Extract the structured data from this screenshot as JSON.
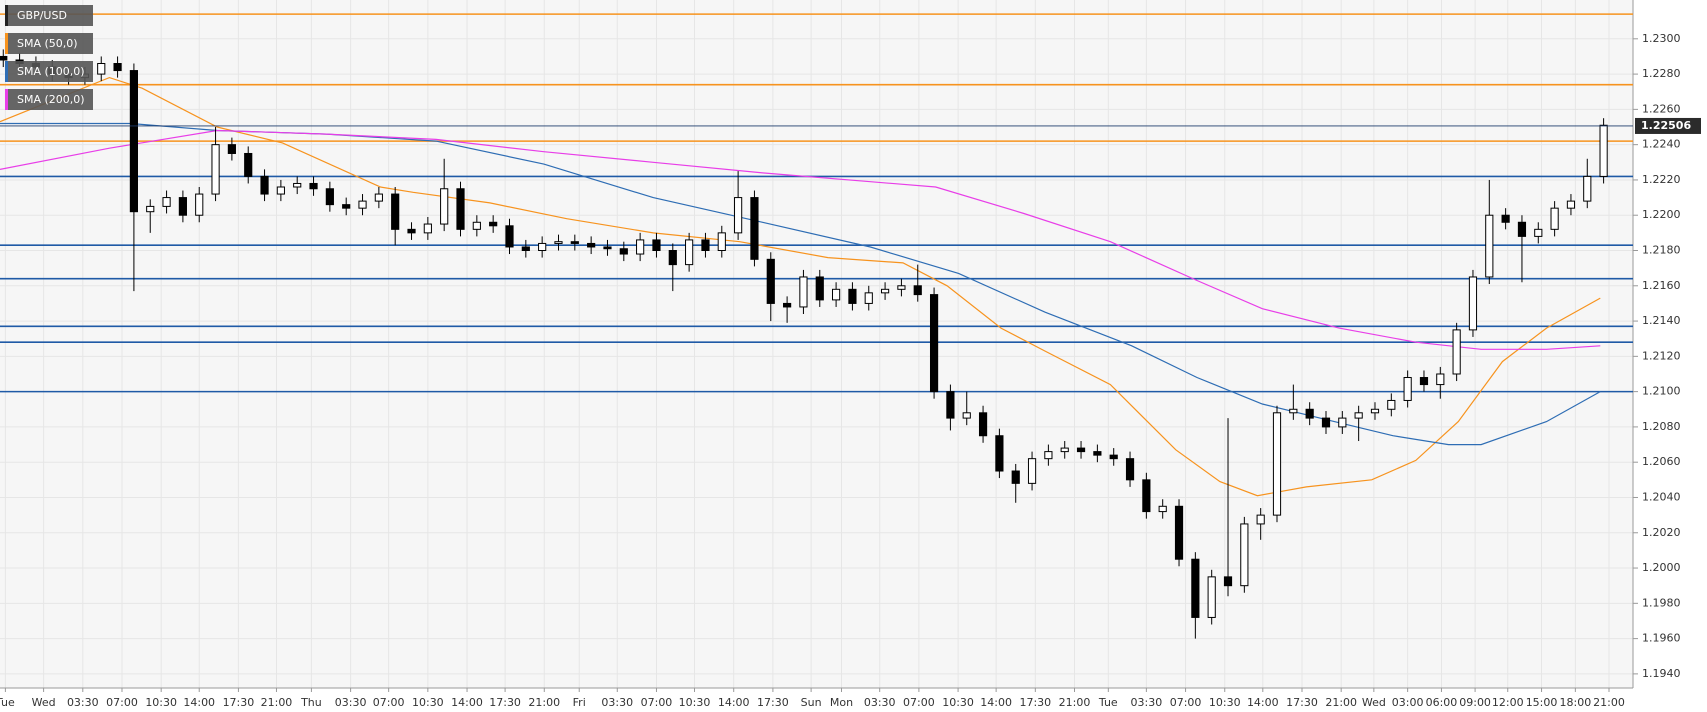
{
  "chart_data": {
    "type": "candlestick",
    "series": [
      {
        "name": "GBP/USD",
        "type": "candlestick",
        "color": "#000000",
        "x": [
          0,
          1,
          2,
          3,
          4,
          5,
          6,
          7,
          8,
          9,
          10,
          11,
          12,
          13,
          14,
          15,
          16,
          17,
          18,
          19,
          20,
          21,
          22,
          23,
          24,
          25,
          26,
          27,
          28,
          29,
          30,
          31,
          32,
          33,
          34,
          35,
          36,
          37,
          38,
          39,
          40,
          41,
          42,
          43,
          44,
          45,
          46,
          47,
          48,
          49,
          50,
          51,
          52,
          53,
          54,
          55,
          56,
          57,
          58,
          59,
          60,
          61,
          62,
          63,
          64,
          65,
          66,
          67,
          68,
          69,
          70,
          71,
          72,
          73,
          74,
          75,
          76,
          77,
          78,
          79,
          80,
          81,
          82,
          83,
          84,
          85,
          86,
          87,
          88,
          89,
          90,
          91,
          92,
          93,
          94,
          95,
          96,
          97,
          98
        ],
        "open": [
          1.229,
          1.2288,
          1.2286,
          1.2284,
          1.228,
          1.2278,
          1.228,
          1.2286,
          1.2282,
          1.2202,
          1.2205,
          1.221,
          1.22,
          1.2212,
          1.224,
          1.2235,
          1.2222,
          1.2212,
          1.2216,
          1.2218,
          1.2215,
          1.2206,
          1.2204,
          1.2208,
          1.2212,
          1.2192,
          1.219,
          1.2195,
          1.2215,
          1.2192,
          1.2196,
          1.2194,
          1.2182,
          1.218,
          1.2184,
          1.2185,
          1.2184,
          1.2182,
          1.2181,
          1.2178,
          1.2186,
          1.218,
          1.2172,
          1.2186,
          1.218,
          1.219,
          1.221,
          1.2175,
          1.215,
          1.2148,
          1.2165,
          1.2152,
          1.2158,
          1.215,
          1.2156,
          1.2158,
          1.216,
          1.2155,
          1.21,
          1.2085,
          1.2088,
          1.2075,
          1.2055,
          1.2048,
          1.2062,
          1.2066,
          1.2068,
          1.2066,
          1.2064,
          1.2062,
          1.205,
          1.2032,
          1.2035,
          1.2005,
          1.1972,
          1.1995,
          1.199,
          1.2025,
          1.203,
          1.2088,
          1.209,
          1.2085,
          1.208,
          1.2085,
          1.2088,
          1.209,
          1.2095,
          1.2108,
          1.2104,
          1.211,
          1.2135,
          1.2165,
          1.22,
          1.2196,
          1.2188,
          1.2192,
          1.2204,
          1.2208,
          1.2222
        ],
        "high": [
          1.2294,
          1.2292,
          1.229,
          1.2288,
          1.2284,
          1.2284,
          1.229,
          1.229,
          1.2286,
          1.2209,
          1.2214,
          1.2214,
          1.2216,
          1.225,
          1.2244,
          1.2239,
          1.2226,
          1.222,
          1.2222,
          1.2222,
          1.2219,
          1.221,
          1.2212,
          1.2216,
          1.2216,
          1.2196,
          1.2199,
          1.2232,
          1.2219,
          1.22,
          1.22,
          1.2198,
          1.2186,
          1.2188,
          1.2189,
          1.2189,
          1.2188,
          1.2186,
          1.2185,
          1.219,
          1.219,
          1.2184,
          1.219,
          1.219,
          1.2194,
          1.2225,
          1.2214,
          1.2179,
          1.2154,
          1.2169,
          1.2169,
          1.2162,
          1.2162,
          1.216,
          1.2162,
          1.2164,
          1.2172,
          1.2159,
          1.2104,
          1.21,
          1.2092,
          1.2079,
          1.2059,
          1.2066,
          1.207,
          1.2072,
          1.2072,
          1.207,
          1.2068,
          1.2066,
          1.2054,
          1.2039,
          1.2039,
          1.2009,
          1.1999,
          1.2085,
          1.2029,
          1.2034,
          1.2092,
          1.2104,
          1.2094,
          1.2089,
          1.2089,
          1.2092,
          1.2094,
          1.2099,
          1.2112,
          1.2112,
          1.2114,
          1.2139,
          1.2169,
          1.222,
          1.2204,
          1.22,
          1.2196,
          1.2208,
          1.2212,
          1.2232,
          1.2255
        ],
        "low": [
          1.2284,
          1.2282,
          1.228,
          1.2276,
          1.2274,
          1.2274,
          1.2276,
          1.2278,
          1.2157,
          1.219,
          1.2201,
          1.2196,
          1.2196,
          1.2208,
          1.2231,
          1.2218,
          1.2208,
          1.2208,
          1.2212,
          1.2211,
          1.2202,
          1.22,
          1.22,
          1.2204,
          1.2183,
          1.2186,
          1.2186,
          1.2191,
          1.2188,
          1.2188,
          1.219,
          1.2178,
          1.2176,
          1.2176,
          1.218,
          1.218,
          1.2178,
          1.2177,
          1.2174,
          1.2174,
          1.2176,
          1.2157,
          1.2168,
          1.2176,
          1.2176,
          1.2186,
          1.2171,
          1.214,
          1.2139,
          1.2144,
          1.2148,
          1.2148,
          1.2146,
          1.2146,
          1.2152,
          1.2154,
          1.2151,
          1.2096,
          1.2078,
          1.2081,
          1.2071,
          1.2051,
          1.2037,
          1.2044,
          1.2058,
          1.2062,
          1.2062,
          1.206,
          1.2058,
          1.2046,
          1.2028,
          1.2028,
          1.2001,
          1.196,
          1.1968,
          1.1984,
          1.1986,
          1.2016,
          1.2026,
          1.2084,
          1.2081,
          1.2076,
          1.2076,
          1.2072,
          1.2084,
          1.2086,
          1.2091,
          1.21,
          1.2096,
          1.2106,
          1.2131,
          1.2161,
          1.2192,
          1.2162,
          1.2184,
          1.2188,
          1.22,
          1.2204,
          1.2218
        ],
        "close": [
          1.2288,
          1.2286,
          1.2284,
          1.228,
          1.2278,
          1.228,
          1.2286,
          1.2282,
          1.2202,
          1.2205,
          1.221,
          1.22,
          1.2212,
          1.224,
          1.2235,
          1.2222,
          1.2212,
          1.2216,
          1.2218,
          1.2215,
          1.2206,
          1.2204,
          1.2208,
          1.2212,
          1.2192,
          1.219,
          1.2195,
          1.2215,
          1.2192,
          1.2196,
          1.2194,
          1.2182,
          1.218,
          1.2184,
          1.2185,
          1.2184,
          1.2182,
          1.2181,
          1.2178,
          1.2186,
          1.218,
          1.2172,
          1.2186,
          1.218,
          1.219,
          1.221,
          1.2175,
          1.215,
          1.2148,
          1.2165,
          1.2152,
          1.2158,
          1.215,
          1.2156,
          1.2158,
          1.216,
          1.2155,
          1.21,
          1.2085,
          1.2088,
          1.2075,
          1.2055,
          1.2048,
          1.2062,
          1.2066,
          1.2068,
          1.2066,
          1.2064,
          1.2062,
          1.205,
          1.2032,
          1.2035,
          1.2005,
          1.1972,
          1.1995,
          1.199,
          1.2025,
          1.203,
          1.2088,
          1.209,
          1.2085,
          1.208,
          1.2085,
          1.2088,
          1.209,
          1.2095,
          1.2108,
          1.2104,
          1.211,
          1.2135,
          1.2165,
          1.22,
          1.2196,
          1.2188,
          1.2192,
          1.2204,
          1.2208,
          1.2222,
          1.2251
        ]
      },
      {
        "name": "SMA (50,0)",
        "type": "line",
        "color": "#f7931e",
        "x": [
          -0.2,
          6.5,
          8.5,
          13.1,
          17.1,
          23.1,
          25.1,
          29.8,
          34.5,
          39.8,
          45.1,
          50.5,
          55.1,
          57.8,
          61.1,
          63.8,
          67.8,
          71.8,
          74.5,
          76.8,
          79.8,
          83.8,
          86.5,
          89.1,
          91.8,
          94.5,
          97.8
        ],
        "values": [
          1.2253,
          1.2278,
          1.2272,
          1.225,
          1.2241,
          1.2216,
          1.2213,
          1.2207,
          1.2198,
          1.219,
          1.2185,
          1.2176,
          1.2173,
          1.216,
          1.2136,
          1.2123,
          1.2104,
          1.2067,
          1.2049,
          1.2041,
          1.2046,
          1.205,
          1.2061,
          1.2083,
          1.2117,
          1.2136,
          1.2153
        ]
      },
      {
        "name": "SMA (100,0)",
        "type": "line",
        "color": "#2e6db4",
        "x": [
          -0.2,
          7.8,
          13.1,
          19.8,
          26.5,
          33.1,
          39.8,
          46.5,
          53.1,
          58.5,
          63.8,
          69.1,
          73.1,
          77.1,
          81.1,
          85.1,
          88.5,
          90.5,
          94.5,
          97.8
        ],
        "values": [
          1.2252,
          1.2252,
          1.2248,
          1.2246,
          1.2242,
          1.2229,
          1.221,
          1.2196,
          1.2182,
          1.2167,
          1.2145,
          1.2126,
          1.2108,
          1.2093,
          1.2084,
          1.2075,
          1.207,
          1.207,
          1.2083,
          1.21
        ]
      },
      {
        "name": "SMA (200,0)",
        "type": "line",
        "color": "#e83ee8",
        "x": [
          -0.2,
          6.5,
          13.1,
          19.8,
          26.5,
          33.1,
          39.8,
          46.5,
          53.1,
          57.1,
          62.5,
          67.8,
          73.1,
          77.1,
          81.8,
          86.5,
          90.5,
          94.5,
          97.8
        ],
        "values": [
          1.2226,
          1.2238,
          1.2248,
          1.2246,
          1.2243,
          1.2236,
          1.223,
          1.2224,
          1.2219,
          1.2216,
          1.2201,
          1.2185,
          1.2163,
          1.2147,
          1.2136,
          1.2128,
          1.2124,
          1.2124,
          1.2126
        ]
      }
    ],
    "last_price": 1.22506,
    "levels": [
      {
        "value": 1.2314,
        "color": "#f7931e"
      },
      {
        "value": 1.2274,
        "color": "#f7931e"
      },
      {
        "value": 1.2242,
        "color": "#f7931e"
      },
      {
        "value": 1.2222,
        "color": "#1f5aa6"
      },
      {
        "value": 1.2183,
        "color": "#1f5aa6"
      },
      {
        "value": 1.2164,
        "color": "#1f5aa6"
      },
      {
        "value": 1.2137,
        "color": "#1f5aa6"
      },
      {
        "value": 1.2128,
        "color": "#1f5aa6"
      },
      {
        "value": 1.21,
        "color": "#1f5aa6"
      }
    ],
    "xlim": [
      -0.2,
      99.8
    ],
    "ylim": [
      1.1932,
      1.2322
    ],
    "xticks": [
      {
        "value": 0.13,
        "label": "Tue"
      },
      {
        "value": 2.47,
        "label": "Wed"
      },
      {
        "value": 4.87,
        "label": "03:30"
      },
      {
        "value": 7.27,
        "label": "07:00"
      },
      {
        "value": 9.67,
        "label": "10:30"
      },
      {
        "value": 12.0,
        "label": "14:00"
      },
      {
        "value": 14.4,
        "label": "17:30"
      },
      {
        "value": 16.73,
        "label": "21:00"
      },
      {
        "value": 18.87,
        "label": "Thu"
      },
      {
        "value": 21.27,
        "label": "03:30"
      },
      {
        "value": 23.6,
        "label": "07:00"
      },
      {
        "value": 26.0,
        "label": "10:30"
      },
      {
        "value": 28.4,
        "label": "14:00"
      },
      {
        "value": 30.73,
        "label": "17:30"
      },
      {
        "value": 33.13,
        "label": "21:00"
      },
      {
        "value": 35.27,
        "label": "Fri"
      },
      {
        "value": 37.6,
        "label": "03:30"
      },
      {
        "value": 40.0,
        "label": "07:00"
      },
      {
        "value": 42.33,
        "label": "10:30"
      },
      {
        "value": 44.73,
        "label": "14:00"
      },
      {
        "value": 47.13,
        "label": "17:30"
      },
      {
        "value": 49.47,
        "label": "Sun"
      },
      {
        "value": 51.33,
        "label": "Mon"
      },
      {
        "value": 53.67,
        "label": "03:30"
      },
      {
        "value": 56.07,
        "label": "07:00"
      },
      {
        "value": 58.47,
        "label": "10:30"
      },
      {
        "value": 60.8,
        "label": "14:00"
      },
      {
        "value": 63.2,
        "label": "17:30"
      },
      {
        "value": 65.6,
        "label": "21:00"
      },
      {
        "value": 67.67,
        "label": "Tue"
      },
      {
        "value": 70.0,
        "label": "03:30"
      },
      {
        "value": 72.4,
        "label": "07:00"
      },
      {
        "value": 74.8,
        "label": "10:30"
      },
      {
        "value": 77.13,
        "label": "14:00"
      },
      {
        "value": 79.53,
        "label": "17:30"
      },
      {
        "value": 81.93,
        "label": "21:00"
      },
      {
        "value": 83.93,
        "label": "Wed"
      },
      {
        "value": 86.0,
        "label": "03:00"
      },
      {
        "value": 88.07,
        "label": "06:00"
      },
      {
        "value": 90.13,
        "label": "09:00"
      },
      {
        "value": 92.13,
        "label": "12:00"
      },
      {
        "value": 94.2,
        "label": "15:00"
      },
      {
        "value": 96.27,
        "label": "18:00"
      },
      {
        "value": 98.33,
        "label": "21:00"
      }
    ],
    "yticks": [
      {
        "value": 1.194,
        "label": "1.1940"
      },
      {
        "value": 1.196,
        "label": "1.1960"
      },
      {
        "value": 1.198,
        "label": "1.1980"
      },
      {
        "value": 1.2,
        "label": "1.2000"
      },
      {
        "value": 1.202,
        "label": "1.2020"
      },
      {
        "value": 1.204,
        "label": "1.2040"
      },
      {
        "value": 1.206,
        "label": "1.2060"
      },
      {
        "value": 1.208,
        "label": "1.2080"
      },
      {
        "value": 1.21,
        "label": "1.2100"
      },
      {
        "value": 1.212,
        "label": "1.2120"
      },
      {
        "value": 1.214,
        "label": "1.2140"
      },
      {
        "value": 1.216,
        "label": "1.2160"
      },
      {
        "value": 1.218,
        "label": "1.2180"
      },
      {
        "value": 1.22,
        "label": "1.2200"
      },
      {
        "value": 1.222,
        "label": "1.2220"
      },
      {
        "value": 1.224,
        "label": "1.2240"
      },
      {
        "value": 1.226,
        "label": "1.2260"
      },
      {
        "value": 1.228,
        "label": "1.2280"
      },
      {
        "value": 1.23,
        "label": "1.2300"
      }
    ],
    "grid": true
  }
}
